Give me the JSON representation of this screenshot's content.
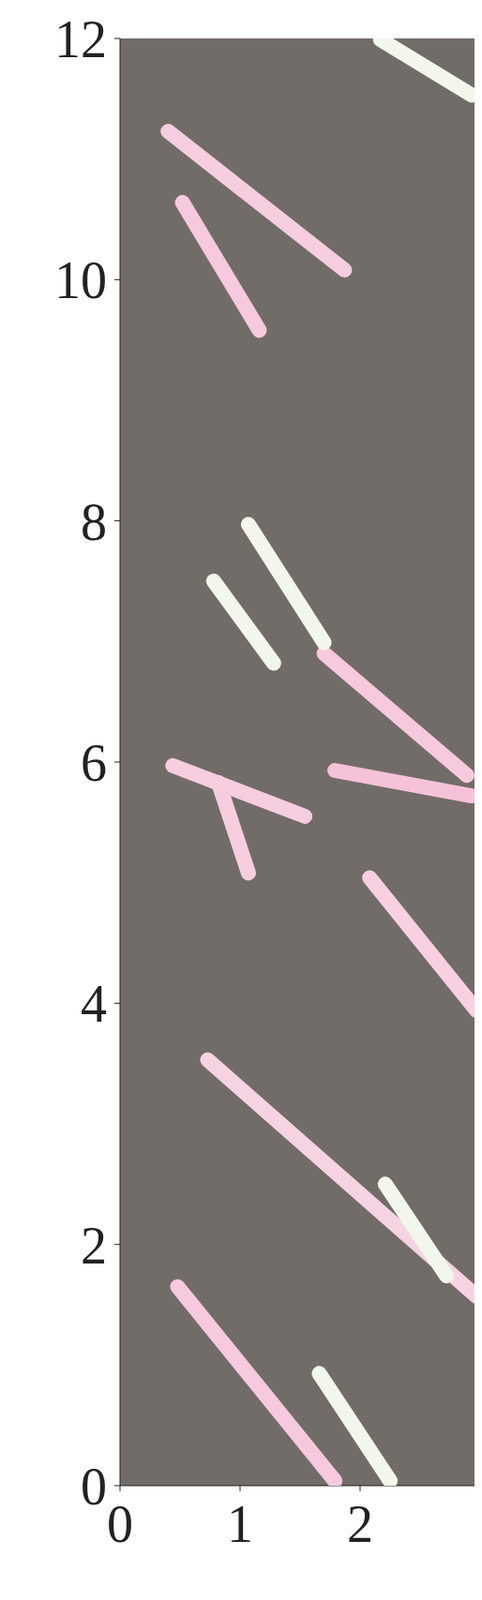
{
  "chart_data": {
    "type": "streaks",
    "xlim": [
      0,
      3
    ],
    "xticks": [
      0,
      1,
      2
    ],
    "ylim": [
      0,
      12
    ],
    "yticks": [
      0,
      2,
      4,
      6,
      8,
      10,
      12
    ],
    "grid": false,
    "series": [
      {
        "color": "#f6d3e3",
        "x": [
          0.73,
          2.97
        ],
        "values": [
          3.53,
          1.57
        ]
      },
      {
        "color": "#f7c9de",
        "x": [
          0.48,
          1.79
        ],
        "values": [
          1.65,
          0.04
        ]
      },
      {
        "color": "#f3f6ea",
        "x": [
          1.66,
          2.25
        ],
        "values": [
          0.93,
          0.04
        ]
      },
      {
        "color": "#f3f6ea",
        "x": [
          2.21,
          2.72
        ],
        "values": [
          2.5,
          1.74
        ]
      },
      {
        "color": "#f8d0e2",
        "x": [
          2.08,
          2.97
        ],
        "values": [
          5.04,
          3.94
        ]
      },
      {
        "color": "#f7cde0",
        "x": [
          0.82,
          1.07
        ],
        "values": [
          5.83,
          5.08
        ]
      },
      {
        "color": "#f7cde0",
        "x": [
          0.44,
          1.54
        ],
        "values": [
          5.97,
          5.55
        ]
      },
      {
        "color": "#f7c9de",
        "x": [
          1.7,
          2.89
        ],
        "values": [
          6.9,
          5.89
        ]
      },
      {
        "color": "#f3f6ea",
        "x": [
          1.07,
          1.7
        ],
        "values": [
          7.97,
          6.99
        ]
      },
      {
        "color": "#f3f6ea",
        "x": [
          0.78,
          1.28
        ],
        "values": [
          7.5,
          6.82
        ]
      },
      {
        "color": "#f7cde0",
        "x": [
          0.4,
          1.87
        ],
        "values": [
          11.23,
          10.08
        ]
      },
      {
        "color": "#f7c9de",
        "x": [
          0.52,
          1.16
        ],
        "values": [
          10.64,
          9.58
        ]
      },
      {
        "color": "#f3f6ea",
        "x": [
          2.17,
          2.93
        ],
        "values": [
          11.99,
          11.53
        ]
      },
      {
        "color": "#f6c2da",
        "x": [
          1.79,
          2.93
        ],
        "values": [
          5.93,
          5.72
        ]
      }
    ]
  }
}
